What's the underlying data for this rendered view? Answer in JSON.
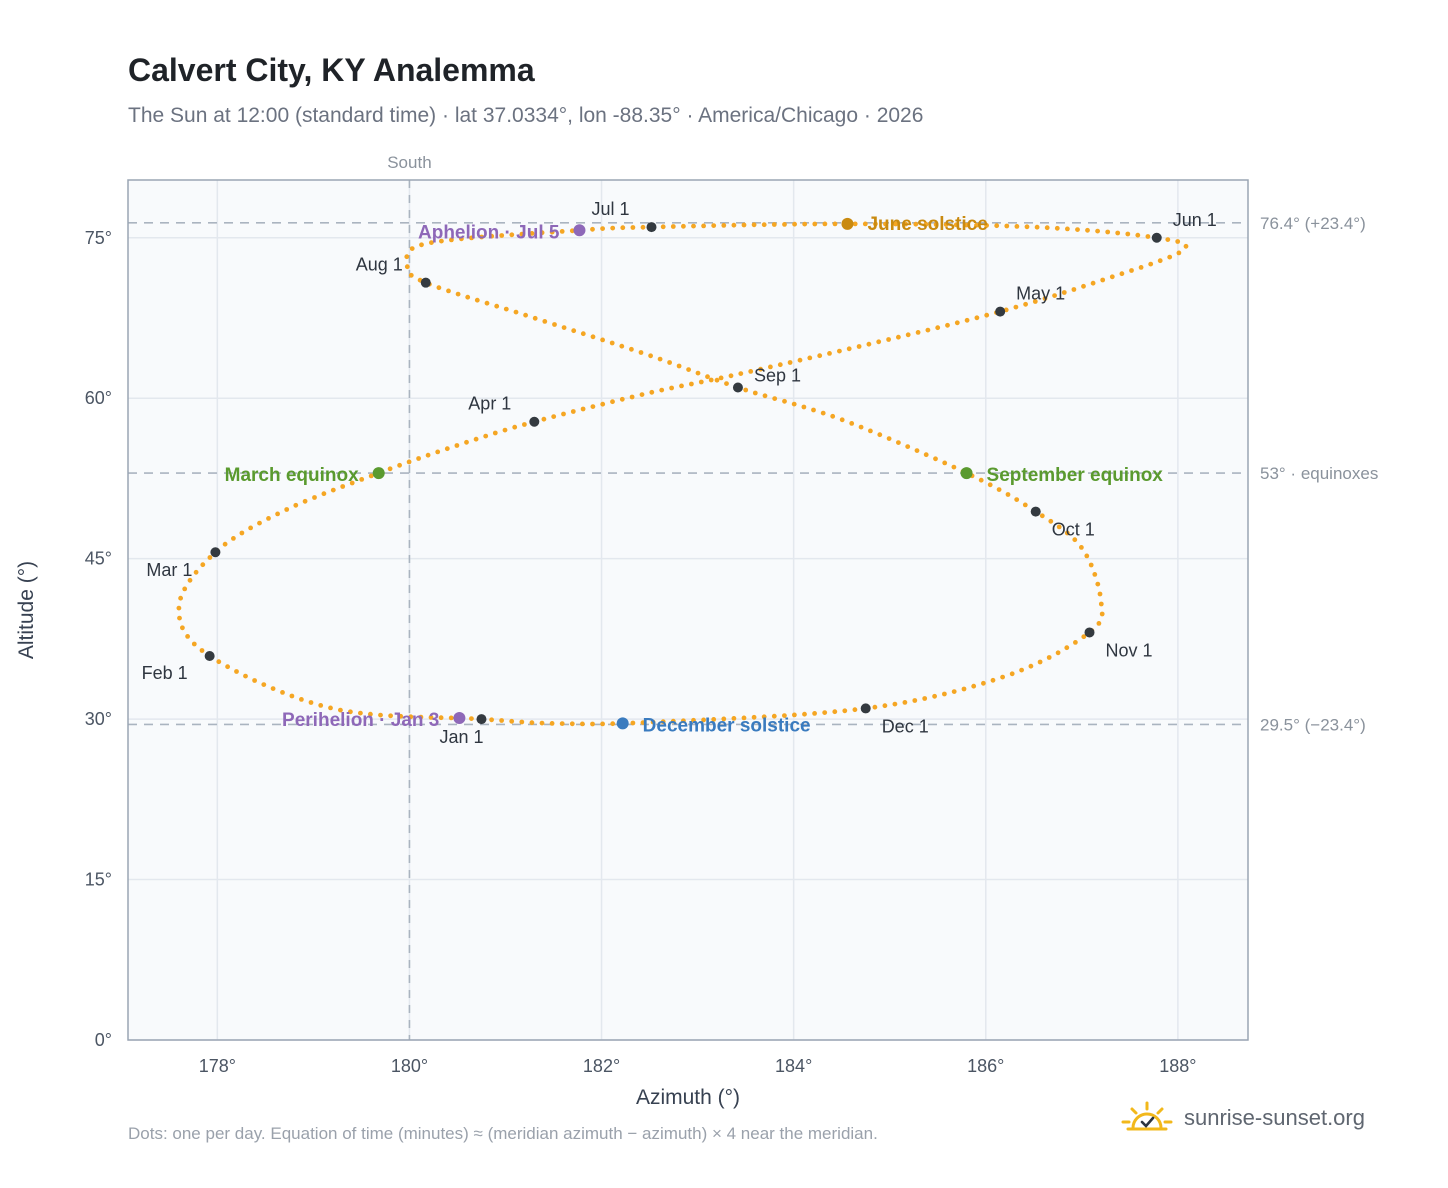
{
  "title": "Calvert City, KY Analemma",
  "subtitle": "The Sun at 12:00 (standard time) · lat 37.0334°, lon -88.35° · America/Chicago · 2026",
  "footnote": "Dots: one per day. Equation of time (minutes) ≈ (meridian azimuth − azimuth) × 4 near the meridian.",
  "brand": "sunrise-sunset.org",
  "colors": {
    "path": "#f5a623",
    "month_marker": "#343a40",
    "solstice_june": "#c98a10",
    "solstice_december": "#3a7bbf",
    "equinox": "#5a9a2f",
    "apsis": "#8e68b8",
    "plot_bg": "#f8fafc",
    "ref_line": "#aab4c0"
  },
  "chart_data": {
    "type": "scatter",
    "title": "Calvert City, KY Analemma",
    "xlabel": "Azimuth (°)",
    "ylabel": "Altitude (°)",
    "xlim": [
      177.07,
      188.73
    ],
    "ylim": [
      0,
      80.4
    ],
    "x_ticks": [
      178,
      180,
      182,
      184,
      186,
      188
    ],
    "x_tick_labels": [
      "178°",
      "180°",
      "182°",
      "184°",
      "186°",
      "188°"
    ],
    "y_ticks": [
      0,
      15,
      30,
      45,
      60,
      75
    ],
    "y_tick_labels": [
      "0°",
      "15°",
      "30°",
      "45°",
      "60°",
      "75°"
    ],
    "grid": true,
    "meridian": {
      "azimuth": 180,
      "label": "South"
    },
    "reference_lines": [
      {
        "altitude": 76.4,
        "label": "76.4° (+23.4°)"
      },
      {
        "altitude": 53.0,
        "label": "53° · equinoxes"
      },
      {
        "altitude": 29.5,
        "label": "29.5° (−23.4°)"
      }
    ],
    "series": [
      {
        "marker": "daily dots",
        "points": [
          [
            180.75,
            30.0
          ],
          [
            179.2,
            31.0
          ],
          [
            177.92,
            35.9
          ],
          [
            177.6,
            40.5
          ],
          [
            177.98,
            45.6
          ],
          [
            178.7,
            49.5
          ],
          [
            179.68,
            53.0
          ],
          [
            180.5,
            55.6
          ],
          [
            181.3,
            57.8
          ],
          [
            182.5,
            60.5
          ],
          [
            183.4,
            62.2
          ],
          [
            184.9,
            65.3
          ],
          [
            186.15,
            68.1
          ],
          [
            187.2,
            71.0
          ],
          [
            188.05,
            73.8
          ],
          [
            187.78,
            75.0
          ],
          [
            186.5,
            76.0
          ],
          [
            184.56,
            76.3
          ],
          [
            182.52,
            76.0
          ],
          [
            181.77,
            75.7
          ],
          [
            180.2,
            74.5
          ],
          [
            179.98,
            72.5
          ],
          [
            180.17,
            70.8
          ],
          [
            181.3,
            67.5
          ],
          [
            182.5,
            64.0
          ],
          [
            183.42,
            61.0
          ],
          [
            184.5,
            58.0
          ],
          [
            185.8,
            53.0
          ],
          [
            186.52,
            49.4
          ],
          [
            187.0,
            46.0
          ],
          [
            187.2,
            41.0
          ],
          [
            187.08,
            38.1
          ],
          [
            186.2,
            34.0
          ],
          [
            184.75,
            31.0
          ],
          [
            182.5,
            29.7
          ],
          [
            181.5,
            29.6
          ],
          [
            180.75,
            30.0
          ]
        ]
      }
    ],
    "month_markers": [
      {
        "label": "Jan 1",
        "azimuth": 180.75,
        "altitude": 30.0
      },
      {
        "label": "Feb 1",
        "azimuth": 177.92,
        "altitude": 35.9
      },
      {
        "label": "Mar 1",
        "azimuth": 177.98,
        "altitude": 45.6
      },
      {
        "label": "Apr 1",
        "azimuth": 181.3,
        "altitude": 57.8
      },
      {
        "label": "May 1",
        "azimuth": 186.15,
        "altitude": 68.1
      },
      {
        "label": "Jun 1",
        "azimuth": 187.78,
        "altitude": 75.0
      },
      {
        "label": "Jul 1",
        "azimuth": 182.52,
        "altitude": 76.0
      },
      {
        "label": "Aug 1",
        "azimuth": 180.17,
        "altitude": 70.8
      },
      {
        "label": "Sep 1",
        "azimuth": 183.42,
        "altitude": 61.0
      },
      {
        "label": "Oct 1",
        "azimuth": 186.52,
        "altitude": 49.4
      },
      {
        "label": "Nov 1",
        "azimuth": 187.08,
        "altitude": 38.1
      },
      {
        "label": "Dec 1",
        "azimuth": 184.75,
        "altitude": 31.0
      }
    ],
    "events": [
      {
        "label": "June solstice",
        "kind": "solstice_june",
        "azimuth": 184.56,
        "altitude": 76.3
      },
      {
        "label": "December solstice",
        "kind": "solstice_december",
        "azimuth": 182.22,
        "altitude": 29.6
      },
      {
        "label": "March equinox",
        "kind": "equinox",
        "azimuth": 179.68,
        "altitude": 53.0
      },
      {
        "label": "September equinox",
        "kind": "equinox",
        "azimuth": 185.8,
        "altitude": 53.0
      },
      {
        "label": "Aphelion · Jul 5",
        "kind": "apsis",
        "azimuth": 181.77,
        "altitude": 75.7
      },
      {
        "label": "Perihelion · Jan 3",
        "kind": "apsis",
        "azimuth": 180.52,
        "altitude": 30.1
      }
    ]
  }
}
